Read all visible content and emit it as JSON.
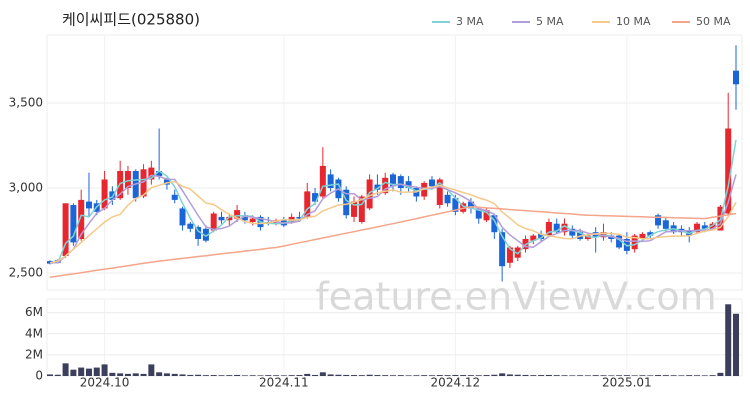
{
  "chart_data": [
    {
      "type": "candlestick",
      "title": "케이씨피드(025880)",
      "watermark": "feature.enViewV.com",
      "categories": [
        null,
        null,
        null,
        null,
        null,
        null,
        null,
        "2024.10",
        null,
        null,
        null,
        null,
        null,
        null,
        null,
        null,
        null,
        null,
        null,
        null,
        null,
        null,
        null,
        null,
        null,
        null,
        null,
        null,
        null,
        null,
        "2024.11",
        null,
        null,
        null,
        null,
        null,
        null,
        null,
        null,
        null,
        null,
        null,
        null,
        null,
        null,
        null,
        null,
        null,
        null,
        null,
        null,
        null,
        "2024.12",
        null,
        null,
        null,
        null,
        null,
        null,
        null,
        null,
        null,
        null,
        null,
        null,
        null,
        null,
        null,
        null,
        null,
        null,
        null,
        null,
        null,
        "2025.01",
        null,
        null,
        null,
        null,
        null,
        null,
        null,
        null,
        null,
        null,
        null,
        null,
        null,
        null
      ],
      "open": [
        2570,
        2575,
        2600,
        2900,
        2700,
        2920,
        2910,
        2880,
        2980,
        2940,
        3000,
        3100,
        2950,
        3050,
        3100,
        3050,
        2960,
        2880,
        2790,
        2770,
        2760,
        2750,
        2830,
        2810,
        2820,
        2840,
        2800,
        2830,
        2800,
        2790,
        2810,
        2800,
        2830,
        2830,
        2970,
        2950,
        3080,
        3050,
        2990,
        2830,
        2800,
        2880,
        3020,
        2970,
        3080,
        3070,
        3040,
        3000,
        2950,
        3050,
        2900,
        2960,
        2940,
        2860,
        2920,
        2880,
        2810,
        2840,
        2740,
        2560,
        2590,
        2640,
        2690,
        2730,
        2720,
        2790,
        2740,
        2760,
        2740,
        2700,
        2740,
        2710,
        2720,
        2720,
        2700,
        2640,
        2700,
        2740,
        2840,
        2810,
        2780,
        2760,
        2750,
        2740,
        2780,
        2760,
        2750,
        2850,
        3690
      ],
      "high": [
        2575,
        2580,
        2910,
        2910,
        2990,
        3090,
        2930,
        3100,
        3010,
        3160,
        3130,
        3110,
        3140,
        3160,
        3350,
        3060,
        2990,
        2890,
        2800,
        2780,
        2780,
        2860,
        2860,
        2850,
        2900,
        2860,
        2840,
        2840,
        2830,
        2820,
        2830,
        2850,
        2860,
        3030,
        3000,
        3240,
        3110,
        3060,
        3010,
        2950,
        2960,
        3080,
        3080,
        3090,
        3090,
        3080,
        3070,
        3010,
        3040,
        3070,
        3060,
        2980,
        2960,
        2920,
        2940,
        2890,
        2880,
        2850,
        2760,
        2660,
        2660,
        2720,
        2730,
        2750,
        2820,
        2820,
        2820,
        2780,
        2760,
        2730,
        2770,
        2790,
        2740,
        2730,
        2740,
        2730,
        2740,
        2750,
        2850,
        2830,
        2800,
        2780,
        2770,
        2800,
        2800,
        2800,
        2900,
        3560,
        3840
      ],
      "low": [
        2550,
        2555,
        2590,
        2660,
        2690,
        2830,
        2840,
        2870,
        2900,
        2930,
        2960,
        2920,
        2940,
        3020,
        3050,
        2990,
        2910,
        2750,
        2740,
        2660,
        2680,
        2740,
        2790,
        2780,
        2800,
        2790,
        2780,
        2750,
        2780,
        2780,
        2770,
        2790,
        2800,
        2820,
        2900,
        2940,
        2980,
        2920,
        2820,
        2800,
        2790,
        2870,
        2960,
        2960,
        2980,
        2960,
        2980,
        2920,
        2930,
        2990,
        2880,
        2890,
        2840,
        2850,
        2850,
        2790,
        2800,
        2700,
        2450,
        2530,
        2570,
        2620,
        2670,
        2680,
        2710,
        2730,
        2720,
        2700,
        2690,
        2690,
        2620,
        2690,
        2680,
        2640,
        2610,
        2620,
        2690,
        2700,
        2760,
        2740,
        2730,
        2720,
        2680,
        2730,
        2740,
        2750,
        2750,
        2830,
        3460
      ],
      "close": [
        2555,
        2560,
        2910,
        2680,
        2930,
        2880,
        2860,
        3050,
        2930,
        3100,
        3100,
        2940,
        3110,
        3120,
        3070,
        3020,
        2930,
        2780,
        2760,
        2700,
        2690,
        2850,
        2810,
        2830,
        2870,
        2810,
        2820,
        2770,
        2790,
        2810,
        2780,
        2830,
        2820,
        2980,
        2920,
        3130,
        3000,
        2940,
        2840,
        2920,
        2950,
        3050,
        2990,
        3060,
        3010,
        3000,
        3000,
        2950,
        3030,
        3010,
        3050,
        2910,
        2860,
        2910,
        2880,
        2820,
        2870,
        2740,
        2540,
        2650,
        2650,
        2700,
        2720,
        2700,
        2800,
        2740,
        2790,
        2720,
        2700,
        2720,
        2710,
        2740,
        2700,
        2650,
        2630,
        2720,
        2730,
        2720,
        2780,
        2760,
        2740,
        2740,
        2720,
        2790,
        2760,
        2790,
        2890,
        3350,
        3610
      ],
      "up_color": "#e8262e",
      "down_color": "#1a66d8",
      "series": [
        {
          "name": "3 MA",
          "color": "#7fd3d3",
          "values": [
            2560,
            2560,
            2675,
            2717,
            2840,
            2830,
            2890,
            2930,
            2947,
            3027,
            3043,
            3047,
            3050,
            3057,
            3100,
            3070,
            3007,
            2910,
            2823,
            2747,
            2717,
            2747,
            2783,
            2830,
            2837,
            2837,
            2833,
            2800,
            2793,
            2790,
            2793,
            2807,
            2810,
            2877,
            2907,
            3010,
            3017,
            3023,
            2927,
            2900,
            2903,
            2973,
            2997,
            3033,
            3020,
            3023,
            3003,
            2983,
            2993,
            2997,
            3030,
            2990,
            2940,
            2893,
            2883,
            2870,
            2857,
            2810,
            2717,
            2643,
            2613,
            2667,
            2690,
            2707,
            2740,
            2747,
            2777,
            2750,
            2737,
            2713,
            2710,
            2723,
            2717,
            2697,
            2660,
            2667,
            2693,
            2723,
            2743,
            2753,
            2760,
            2747,
            2733,
            2750,
            2757,
            2780,
            2813,
            3010,
            3283
          ]
        },
        {
          "name": "5 MA",
          "color": "#b39ddb",
          "values": [
            2560,
            2560,
            2600,
            2640,
            2727,
            2792,
            2852,
            2880,
            2930,
            2964,
            3008,
            3024,
            3036,
            3074,
            3068,
            3052,
            3050,
            2984,
            2912,
            2838,
            2772,
            2756,
            2762,
            2776,
            2810,
            2834,
            2828,
            2820,
            2812,
            2800,
            2794,
            2796,
            2806,
            2844,
            2866,
            2936,
            2970,
            2994,
            2966,
            2966,
            2930,
            2940,
            2950,
            2994,
            3012,
            3022,
            3012,
            3004,
            2998,
            2998,
            3008,
            2990,
            2972,
            2948,
            2922,
            2876,
            2868,
            2844,
            2770,
            2724,
            2690,
            2656,
            2652,
            2684,
            2714,
            2732,
            2750,
            2750,
            2750,
            2734,
            2728,
            2718,
            2714,
            2704,
            2686,
            2688,
            2686,
            2690,
            2716,
            2742,
            2746,
            2748,
            2748,
            2750,
            2750,
            2760,
            2790,
            2916,
            3080
          ]
        },
        {
          "name": "10 MA",
          "color": "#f5c98a",
          "values": [
            2560,
            2570,
            2600,
            2640,
            2680,
            2720,
            2760,
            2800,
            2830,
            2846,
            2900,
            2938,
            2958,
            3002,
            3016,
            3030,
            3037,
            3010,
            2993,
            2953,
            2912,
            2903,
            2873,
            2844,
            2824,
            2803,
            2792,
            2791,
            2794,
            2805,
            2814,
            2812,
            2813,
            2828,
            2833,
            2865,
            2883,
            2900,
            2905,
            2916,
            2933,
            2955,
            2972,
            2980,
            2989,
            2976,
            2976,
            2977,
            2996,
            3005,
            3015,
            3001,
            2988,
            2973,
            2960,
            2942,
            2929,
            2908,
            2859,
            2823,
            2783,
            2762,
            2748,
            2727,
            2719,
            2711,
            2703,
            2701,
            2717,
            2724,
            2730,
            2734,
            2732,
            2727,
            2710,
            2708,
            2702,
            2702,
            2710,
            2714,
            2717,
            2717,
            2719,
            2733,
            2746,
            2753,
            2769,
            2832,
            2915
          ]
        },
        {
          "name": "50 MA",
          "color": "#f4a58a",
          "values": [
            2475,
            2482,
            2489,
            2495,
            2502,
            2509,
            2516,
            2523,
            2529,
            2536,
            2543,
            2550,
            2557,
            2563,
            2570,
            2575,
            2581,
            2586,
            2591,
            2597,
            2602,
            2607,
            2613,
            2618,
            2623,
            2629,
            2634,
            2639,
            2645,
            2650,
            2659,
            2669,
            2678,
            2687,
            2697,
            2706,
            2715,
            2725,
            2734,
            2743,
            2753,
            2762,
            2771,
            2781,
            2790,
            2800,
            2810,
            2820,
            2830,
            2840,
            2850,
            2860,
            2870,
            2880,
            2890,
            2887,
            2883,
            2880,
            2877,
            2873,
            2870,
            2867,
            2863,
            2860,
            2857,
            2853,
            2850,
            2847,
            2843,
            2840,
            2839,
            2837,
            2836,
            2835,
            2833,
            2832,
            2831,
            2829,
            2828,
            2827,
            2825,
            2824,
            2823,
            2821,
            2820,
            2828,
            2835,
            2843,
            2850
          ]
        }
      ],
      "ylim": [
        2400,
        3900
      ],
      "yticks": [
        {
          "value": 2500,
          "label": "2,500"
        },
        {
          "value": 3000,
          "label": "3,000"
        },
        {
          "value": 3500,
          "label": "3,500"
        }
      ],
      "grid": true,
      "legend": "top-right"
    },
    {
      "type": "bar",
      "values": [
        150000,
        120000,
        1200000,
        600000,
        800000,
        700000,
        800000,
        1100000,
        300000,
        250000,
        200000,
        250000,
        200000,
        1100000,
        350000,
        250000,
        200000,
        150000,
        100000,
        120000,
        80000,
        90000,
        70000,
        80000,
        100000,
        60000,
        70000,
        60000,
        80000,
        70000,
        60000,
        80000,
        90000,
        200000,
        100000,
        350000,
        150000,
        120000,
        100000,
        90000,
        80000,
        120000,
        90000,
        80000,
        70000,
        80000,
        60000,
        70000,
        80000,
        70000,
        90000,
        80000,
        100000,
        90000,
        80000,
        70000,
        90000,
        120000,
        250000,
        150000,
        120000,
        100000,
        80000,
        90000,
        100000,
        80000,
        70000,
        60000,
        70000,
        60000,
        80000,
        70000,
        60000,
        70000,
        80000,
        60000,
        70000,
        60000,
        90000,
        80000,
        70000,
        60000,
        80000,
        70000,
        60000,
        80000,
        300000,
        6800000,
        5900000
      ],
      "color": "#3c3f5c",
      "ylim": [
        0,
        7300000
      ],
      "yticks": [
        0,
        {
          "value": 2000000,
          "label": "2M"
        },
        {
          "value": 4000000,
          "label": "4M"
        },
        {
          "value": 6000000,
          "label": "6M"
        }
      ]
    }
  ]
}
